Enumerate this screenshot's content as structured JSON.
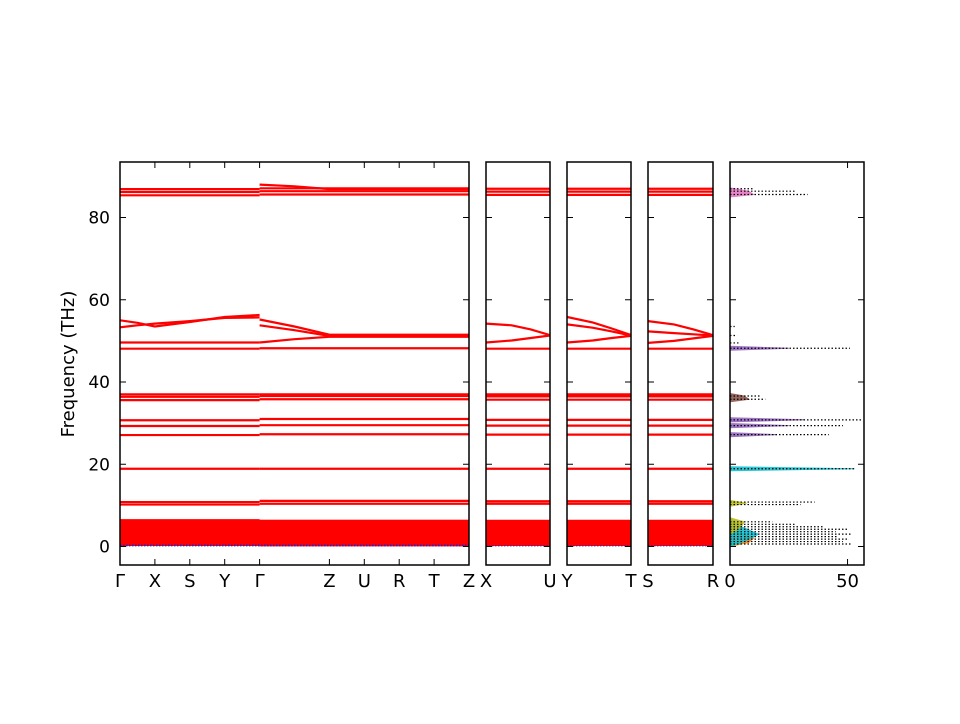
{
  "chart_data": {
    "type": "line",
    "ylabel": "Frequency (THz)",
    "ylim": [
      -4.5,
      93.5
    ],
    "yticks": [
      0,
      20,
      40,
      60,
      80
    ],
    "band_color": "#ff0000",
    "acoustic_color": "#2222cc",
    "panels": [
      {
        "name": "main-path",
        "xticks": [
          "Γ",
          "X",
          "S",
          "Y",
          "Γ",
          "Z",
          "U",
          "R",
          "T",
          "Z"
        ],
        "xtick_positions": [
          0,
          1,
          2,
          3,
          4,
          6,
          7,
          8,
          9,
          10
        ],
        "xlim": [
          0,
          10
        ],
        "band_levels": [
          {
            "from": 0,
            "to": 4,
            "y": 0.4
          },
          {
            "from": 0,
            "to": 4,
            "y": 2
          },
          {
            "from": 0,
            "to": 4,
            "y": 4
          },
          {
            "from": 0,
            "to": 4,
            "y": 6.4
          },
          {
            "from": 0,
            "to": 4,
            "y": 10.2
          },
          {
            "from": 0,
            "to": 4,
            "y": 10.8
          },
          {
            "from": 0,
            "to": 4,
            "y": 18.9
          },
          {
            "from": 0,
            "to": 4,
            "y": 27.1
          },
          {
            "from": 0,
            "to": 4,
            "y": 29.3
          },
          {
            "from": 0,
            "to": 4,
            "y": 30.7
          },
          {
            "from": 0,
            "to": 4,
            "y": 35.6
          },
          {
            "from": 0,
            "to": 4,
            "y": 36.4
          },
          {
            "from": 0,
            "to": 4,
            "y": 37.0
          },
          {
            "from": 0,
            "to": 4,
            "y": 48.1
          },
          {
            "from": 0,
            "to": 4,
            "y": 49.6
          },
          {
            "from": 0,
            "to": 4,
            "y": 85.4
          },
          {
            "from": 0,
            "to": 4,
            "y": 86.2
          },
          {
            "from": 0,
            "to": 4,
            "y": 86.9
          },
          {
            "from": 4,
            "to": 10,
            "y": 0.3
          },
          {
            "from": 4,
            "to": 10,
            "y": 2
          },
          {
            "from": 4,
            "to": 10,
            "y": 4
          },
          {
            "from": 4,
            "to": 10,
            "y": 6.2
          },
          {
            "from": 4,
            "to": 10,
            "y": 10.4
          },
          {
            "from": 4,
            "to": 10,
            "y": 11.1
          },
          {
            "from": 4,
            "to": 10,
            "y": 18.9
          },
          {
            "from": 4,
            "to": 10,
            "y": 27.3
          },
          {
            "from": 4,
            "to": 10,
            "y": 29.5
          },
          {
            "from": 4,
            "to": 10,
            "y": 31.0
          },
          {
            "from": 4,
            "to": 10,
            "y": 35.8
          },
          {
            "from": 4,
            "to": 10,
            "y": 36.6
          },
          {
            "from": 4,
            "to": 10,
            "y": 37.0
          },
          {
            "from": 4,
            "to": 10,
            "y": 48.2
          },
          {
            "from": 4,
            "to": 10,
            "y": 85.6
          },
          {
            "from": 4,
            "to": 10,
            "y": 86.4
          },
          {
            "from": 4,
            "to": 10,
            "y": 87.1
          }
        ],
        "band_curves": [
          {
            "x": [
              0,
              0.5,
              1,
              2,
              3,
              4
            ],
            "y": [
              55,
              54.4,
              53.5,
              54.6,
              55.8,
              56.3
            ]
          },
          {
            "x": [
              0,
              0.5,
              1,
              2,
              3,
              4
            ],
            "y": [
              53.3,
              53.8,
              54.2,
              54.8,
              55.6,
              55.7
            ]
          },
          {
            "x": [
              4,
              5,
              6,
              7,
              10
            ],
            "y": [
              55.2,
              53.5,
              51.5,
              51.5,
              51.5
            ]
          },
          {
            "x": [
              4,
              5,
              6,
              7,
              10
            ],
            "y": [
              53.8,
              52.6,
              51.2,
              51.2,
              51.2
            ]
          },
          {
            "x": [
              4,
              5,
              6,
              7,
              10
            ],
            "y": [
              49.6,
              50.4,
              51.0,
              51.0,
              51.0
            ]
          },
          {
            "x": [
              4,
              5,
              6,
              7,
              10
            ],
            "y": [
              88.0,
              87.6,
              86.9,
              86.9,
              86.9
            ]
          }
        ],
        "acoustic_lines": [
          0.15,
          0.35
        ]
      },
      {
        "name": "X-U",
        "xticks": [
          "X",
          "U"
        ],
        "xtick_positions": [
          0,
          1
        ],
        "xlim": [
          0,
          1
        ],
        "band_levels": [
          {
            "from": 0,
            "to": 1,
            "y": 0.4
          },
          {
            "from": 0,
            "to": 1,
            "y": 2
          },
          {
            "from": 0,
            "to": 1,
            "y": 4
          },
          {
            "from": 0,
            "to": 1,
            "y": 6.0
          },
          {
            "from": 0,
            "to": 1,
            "y": 10.4
          },
          {
            "from": 0,
            "to": 1,
            "y": 11.0
          },
          {
            "from": 0,
            "to": 1,
            "y": 18.9
          },
          {
            "from": 0,
            "to": 1,
            "y": 27.2
          },
          {
            "from": 0,
            "to": 1,
            "y": 29.4
          },
          {
            "from": 0,
            "to": 1,
            "y": 30.8
          },
          {
            "from": 0,
            "to": 1,
            "y": 35.7
          },
          {
            "from": 0,
            "to": 1,
            "y": 36.5
          },
          {
            "from": 0,
            "to": 1,
            "y": 37.0
          },
          {
            "from": 0,
            "to": 1,
            "y": 48.1
          },
          {
            "from": 0,
            "to": 1,
            "y": 85.5
          },
          {
            "from": 0,
            "to": 1,
            "y": 86.3
          },
          {
            "from": 0,
            "to": 1,
            "y": 87.0
          }
        ],
        "band_curves": [
          {
            "x": [
              0,
              0.4,
              0.7,
              1
            ],
            "y": [
              54.2,
              53.8,
              52.8,
              51.4
            ]
          },
          {
            "x": [
              0,
              0.4,
              0.7,
              1
            ],
            "y": [
              49.6,
              50.1,
              50.7,
              51.3
            ]
          }
        ],
        "acoustic_lines": [
          0.15
        ]
      },
      {
        "name": "Y-T",
        "xticks": [
          "Y",
          "T"
        ],
        "xtick_positions": [
          0,
          1
        ],
        "xlim": [
          0,
          1
        ],
        "band_levels": [
          {
            "from": 0,
            "to": 1,
            "y": 0.4
          },
          {
            "from": 0,
            "to": 1,
            "y": 2
          },
          {
            "from": 0,
            "to": 1,
            "y": 4
          },
          {
            "from": 0,
            "to": 1,
            "y": 6.0
          },
          {
            "from": 0,
            "to": 1,
            "y": 10.4
          },
          {
            "from": 0,
            "to": 1,
            "y": 11.0
          },
          {
            "from": 0,
            "to": 1,
            "y": 18.9
          },
          {
            "from": 0,
            "to": 1,
            "y": 27.2
          },
          {
            "from": 0,
            "to": 1,
            "y": 29.4
          },
          {
            "from": 0,
            "to": 1,
            "y": 30.8
          },
          {
            "from": 0,
            "to": 1,
            "y": 35.7
          },
          {
            "from": 0,
            "to": 1,
            "y": 36.5
          },
          {
            "from": 0,
            "to": 1,
            "y": 37.0
          },
          {
            "from": 0,
            "to": 1,
            "y": 48.1
          },
          {
            "from": 0,
            "to": 1,
            "y": 85.5
          },
          {
            "from": 0,
            "to": 1,
            "y": 86.3
          },
          {
            "from": 0,
            "to": 1,
            "y": 87.0
          }
        ],
        "band_curves": [
          {
            "x": [
              0,
              0.4,
              0.7,
              1
            ],
            "y": [
              55.8,
              54.5,
              53.0,
              51.4
            ]
          },
          {
            "x": [
              0,
              0.4,
              0.7,
              1
            ],
            "y": [
              54.0,
              53.2,
              52.3,
              51.3
            ]
          },
          {
            "x": [
              0,
              0.4,
              0.7,
              1
            ],
            "y": [
              49.6,
              50.1,
              50.7,
              51.2
            ]
          }
        ],
        "acoustic_lines": [
          0.15
        ]
      },
      {
        "name": "S-R",
        "xticks": [
          "S",
          "R"
        ],
        "xtick_positions": [
          0,
          1
        ],
        "xlim": [
          0,
          1
        ],
        "band_levels": [
          {
            "from": 0,
            "to": 1,
            "y": 0.4
          },
          {
            "from": 0,
            "to": 1,
            "y": 2
          },
          {
            "from": 0,
            "to": 1,
            "y": 4
          },
          {
            "from": 0,
            "to": 1,
            "y": 6.0
          },
          {
            "from": 0,
            "to": 1,
            "y": 10.4
          },
          {
            "from": 0,
            "to": 1,
            "y": 11.0
          },
          {
            "from": 0,
            "to": 1,
            "y": 18.9
          },
          {
            "from": 0,
            "to": 1,
            "y": 27.2
          },
          {
            "from": 0,
            "to": 1,
            "y": 29.4
          },
          {
            "from": 0,
            "to": 1,
            "y": 30.8
          },
          {
            "from": 0,
            "to": 1,
            "y": 35.7
          },
          {
            "from": 0,
            "to": 1,
            "y": 36.5
          },
          {
            "from": 0,
            "to": 1,
            "y": 37.0
          },
          {
            "from": 0,
            "to": 1,
            "y": 48.1
          },
          {
            "from": 0,
            "to": 1,
            "y": 85.5
          },
          {
            "from": 0,
            "to": 1,
            "y": 86.3
          },
          {
            "from": 0,
            "to": 1,
            "y": 87.0
          }
        ],
        "band_curves": [
          {
            "x": [
              0,
              0.4,
              0.7,
              1
            ],
            "y": [
              54.8,
              54.0,
              52.8,
              51.4
            ]
          },
          {
            "x": [
              0,
              0.4,
              0.7,
              1
            ],
            "y": [
              52.3,
              51.9,
              51.6,
              51.3
            ]
          },
          {
            "x": [
              0,
              0.4,
              0.7,
              1
            ],
            "y": [
              49.5,
              50.0,
              50.6,
              51.2
            ]
          }
        ],
        "acoustic_lines": [
          0.15
        ]
      }
    ],
    "dos_panel": {
      "xticks": [
        "0",
        "50"
      ],
      "xtick_values": [
        0,
        50
      ],
      "xlim": [
        0,
        57
      ],
      "total_color": "#000000",
      "total_dos": [
        {
          "y": 0.6,
          "value": 52
        },
        {
          "y": 1.2,
          "value": 48
        },
        {
          "y": 1.8,
          "value": 50
        },
        {
          "y": 2.4,
          "value": 46
        },
        {
          "y": 3.0,
          "value": 52
        },
        {
          "y": 3.6,
          "value": 45
        },
        {
          "y": 4.2,
          "value": 50
        },
        {
          "y": 4.8,
          "value": 40
        },
        {
          "y": 5.4,
          "value": 28
        },
        {
          "y": 6.0,
          "value": 18
        },
        {
          "y": 10.2,
          "value": 30
        },
        {
          "y": 10.8,
          "value": 36
        },
        {
          "y": 18.9,
          "value": 53
        },
        {
          "y": 27.2,
          "value": 42
        },
        {
          "y": 29.4,
          "value": 48
        },
        {
          "y": 30.8,
          "value": 56
        },
        {
          "y": 35.8,
          "value": 15
        },
        {
          "y": 36.6,
          "value": 13
        },
        {
          "y": 48.2,
          "value": 51
        },
        {
          "y": 49.5,
          "value": 4
        },
        {
          "y": 51.3,
          "value": 3
        },
        {
          "y": 53.5,
          "value": 2
        },
        {
          "y": 85.6,
          "value": 33
        },
        {
          "y": 86.4,
          "value": 28
        },
        {
          "y": 87.0,
          "value": 10
        }
      ],
      "partial_dos": [
        {
          "color": "#ff7f0e",
          "points": [
            [
              0,
              0
            ],
            [
              1,
              8
            ],
            [
              2,
              10
            ],
            [
              3,
              6
            ],
            [
              4,
              3
            ],
            [
              5,
              1
            ],
            [
              6,
              0
            ]
          ]
        },
        {
          "color": "#17becf",
          "points": [
            [
              0,
              0
            ],
            [
              1,
              5
            ],
            [
              2,
              9
            ],
            [
              3,
              12
            ],
            [
              4,
              8
            ],
            [
              5,
              4
            ],
            [
              6,
              2
            ],
            [
              7,
              0
            ]
          ]
        },
        {
          "color": "#bcbd22",
          "points": [
            [
              3,
              0
            ],
            [
              4,
              3
            ],
            [
              5,
              5
            ],
            [
              6,
              6
            ],
            [
              7,
              0
            ],
            [
              9.8,
              0
            ],
            [
              10.5,
              7
            ],
            [
              11.2,
              0
            ]
          ]
        },
        {
          "color": "#17becf",
          "points": [
            [
              18.4,
              0
            ],
            [
              18.9,
              53
            ],
            [
              19.4,
              0
            ]
          ]
        },
        {
          "color": "#9467bd",
          "points": [
            [
              26.7,
              0
            ],
            [
              27.2,
              20
            ],
            [
              27.7,
              0
            ],
            [
              28.9,
              0
            ],
            [
              29.4,
              25
            ],
            [
              29.9,
              0
            ],
            [
              30.3,
              0
            ],
            [
              30.8,
              32
            ],
            [
              31.3,
              0
            ]
          ]
        },
        {
          "color": "#8c564b",
          "points": [
            [
              35.2,
              0
            ],
            [
              35.8,
              8
            ],
            [
              36.6,
              6
            ],
            [
              37.2,
              0
            ]
          ]
        },
        {
          "color": "#9467bd",
          "points": [
            [
              47.7,
              0
            ],
            [
              48.2,
              25
            ],
            [
              48.7,
              0
            ]
          ]
        },
        {
          "color": "#e377c2",
          "points": [
            [
              85.0,
              0
            ],
            [
              85.6,
              10
            ],
            [
              86.4,
              8
            ],
            [
              87.2,
              0
            ]
          ]
        }
      ]
    }
  }
}
